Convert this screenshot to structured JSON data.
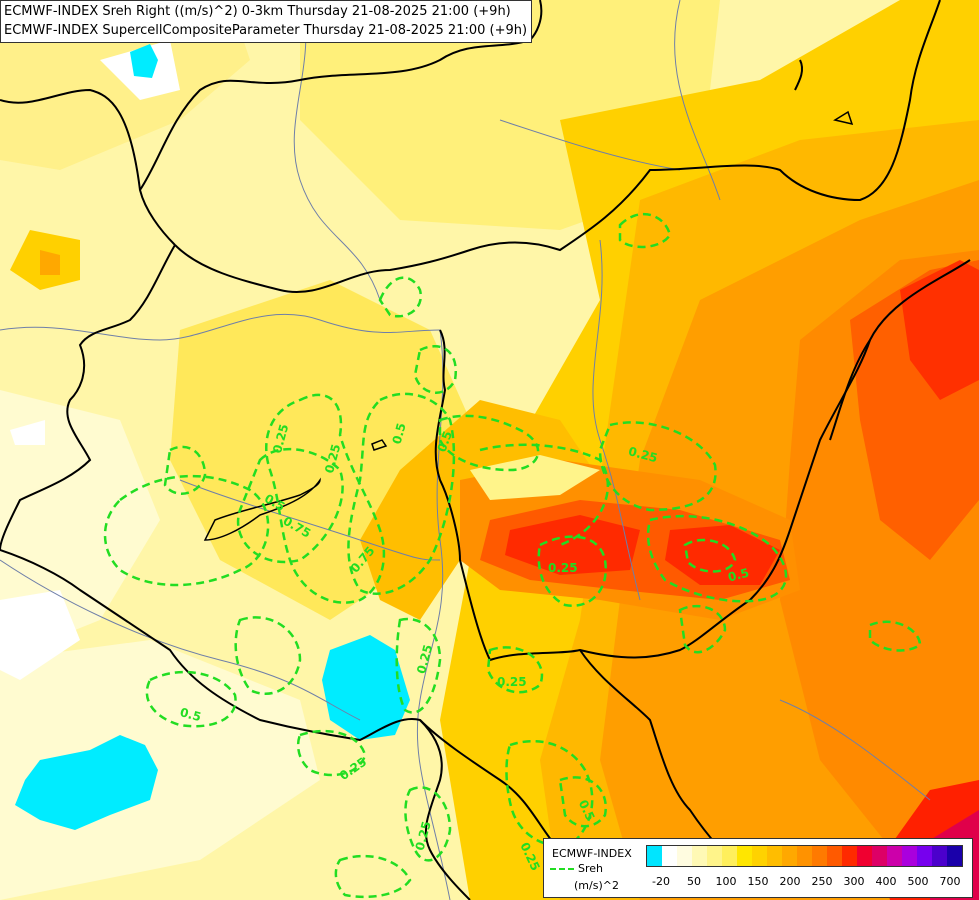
{
  "header": {
    "line1": "ECMWF-INDEX Sreh Right ((m/s)^2) 0-3km Thursday 21-08-2025 21:00 (+9h)",
    "line2": "ECMWF-INDEX SupercellCompositeParameter Thursday 21-08-2025 21:00 (+9h)"
  },
  "map": {
    "contour_color": "#22dd22",
    "border_color": "#000000",
    "river_color": "#6f7fa8",
    "contour_labels": [
      "0.25",
      "0.5",
      "0.75",
      "0.25",
      "0.75",
      "0.25",
      "0.25",
      "0.5",
      "0.25",
      "0.5",
      "0.25",
      "0.25",
      "0.5",
      "0.25",
      "0.25",
      "0.5",
      "0.5"
    ]
  },
  "legend": {
    "model": "ECMWF-INDEX",
    "sreh_label": "Sreh",
    "unit": "(m/s)^2",
    "tick_labels": [
      "-20",
      "50",
      "100",
      "150",
      "200",
      "250",
      "300",
      "400",
      "500",
      "700"
    ],
    "colors": [
      "#00e5ff",
      "#ffffff",
      "#fffce0",
      "#fff9b5",
      "#fff48a",
      "#ffef5c",
      "#ffe600",
      "#ffd200",
      "#ffbd00",
      "#ffa800",
      "#ff9200",
      "#ff7a00",
      "#ff5a00",
      "#ff2a00",
      "#f00030",
      "#dd0066",
      "#cc00aa",
      "#aa00dd",
      "#7700ee",
      "#4b00cc",
      "#1a00aa"
    ]
  }
}
